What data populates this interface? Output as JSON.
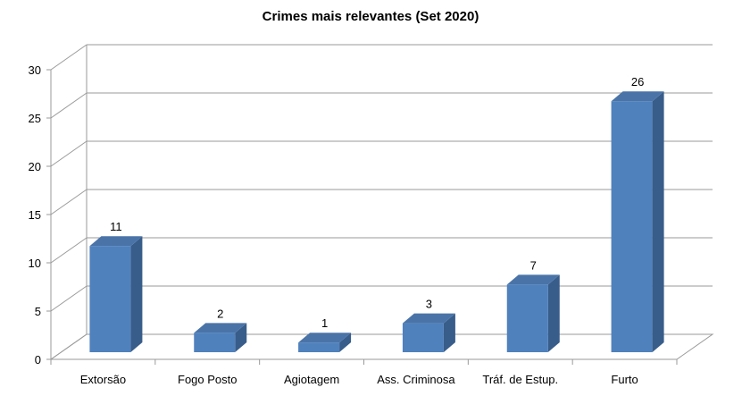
{
  "chart_data": {
    "type": "bar",
    "title": "Crimes mais relevantes (Set 2020)",
    "categories": [
      "Extorsão",
      "Fogo Posto",
      "Agiotagem",
      "Ass. Criminosa",
      "Tráf. de Estup.",
      "Furto"
    ],
    "values": [
      11,
      2,
      1,
      3,
      7,
      26
    ],
    "y_ticks": [
      "0",
      "5",
      "10",
      "15",
      "20",
      "25",
      "30"
    ],
    "ylim": [
      0,
      30
    ],
    "grid": true,
    "legend": "none",
    "style": "3d-column",
    "colors": {
      "front": "#4f81bd",
      "side": "#385d8a",
      "top": "#4a74a8",
      "grid": "#9a9a9a"
    }
  }
}
